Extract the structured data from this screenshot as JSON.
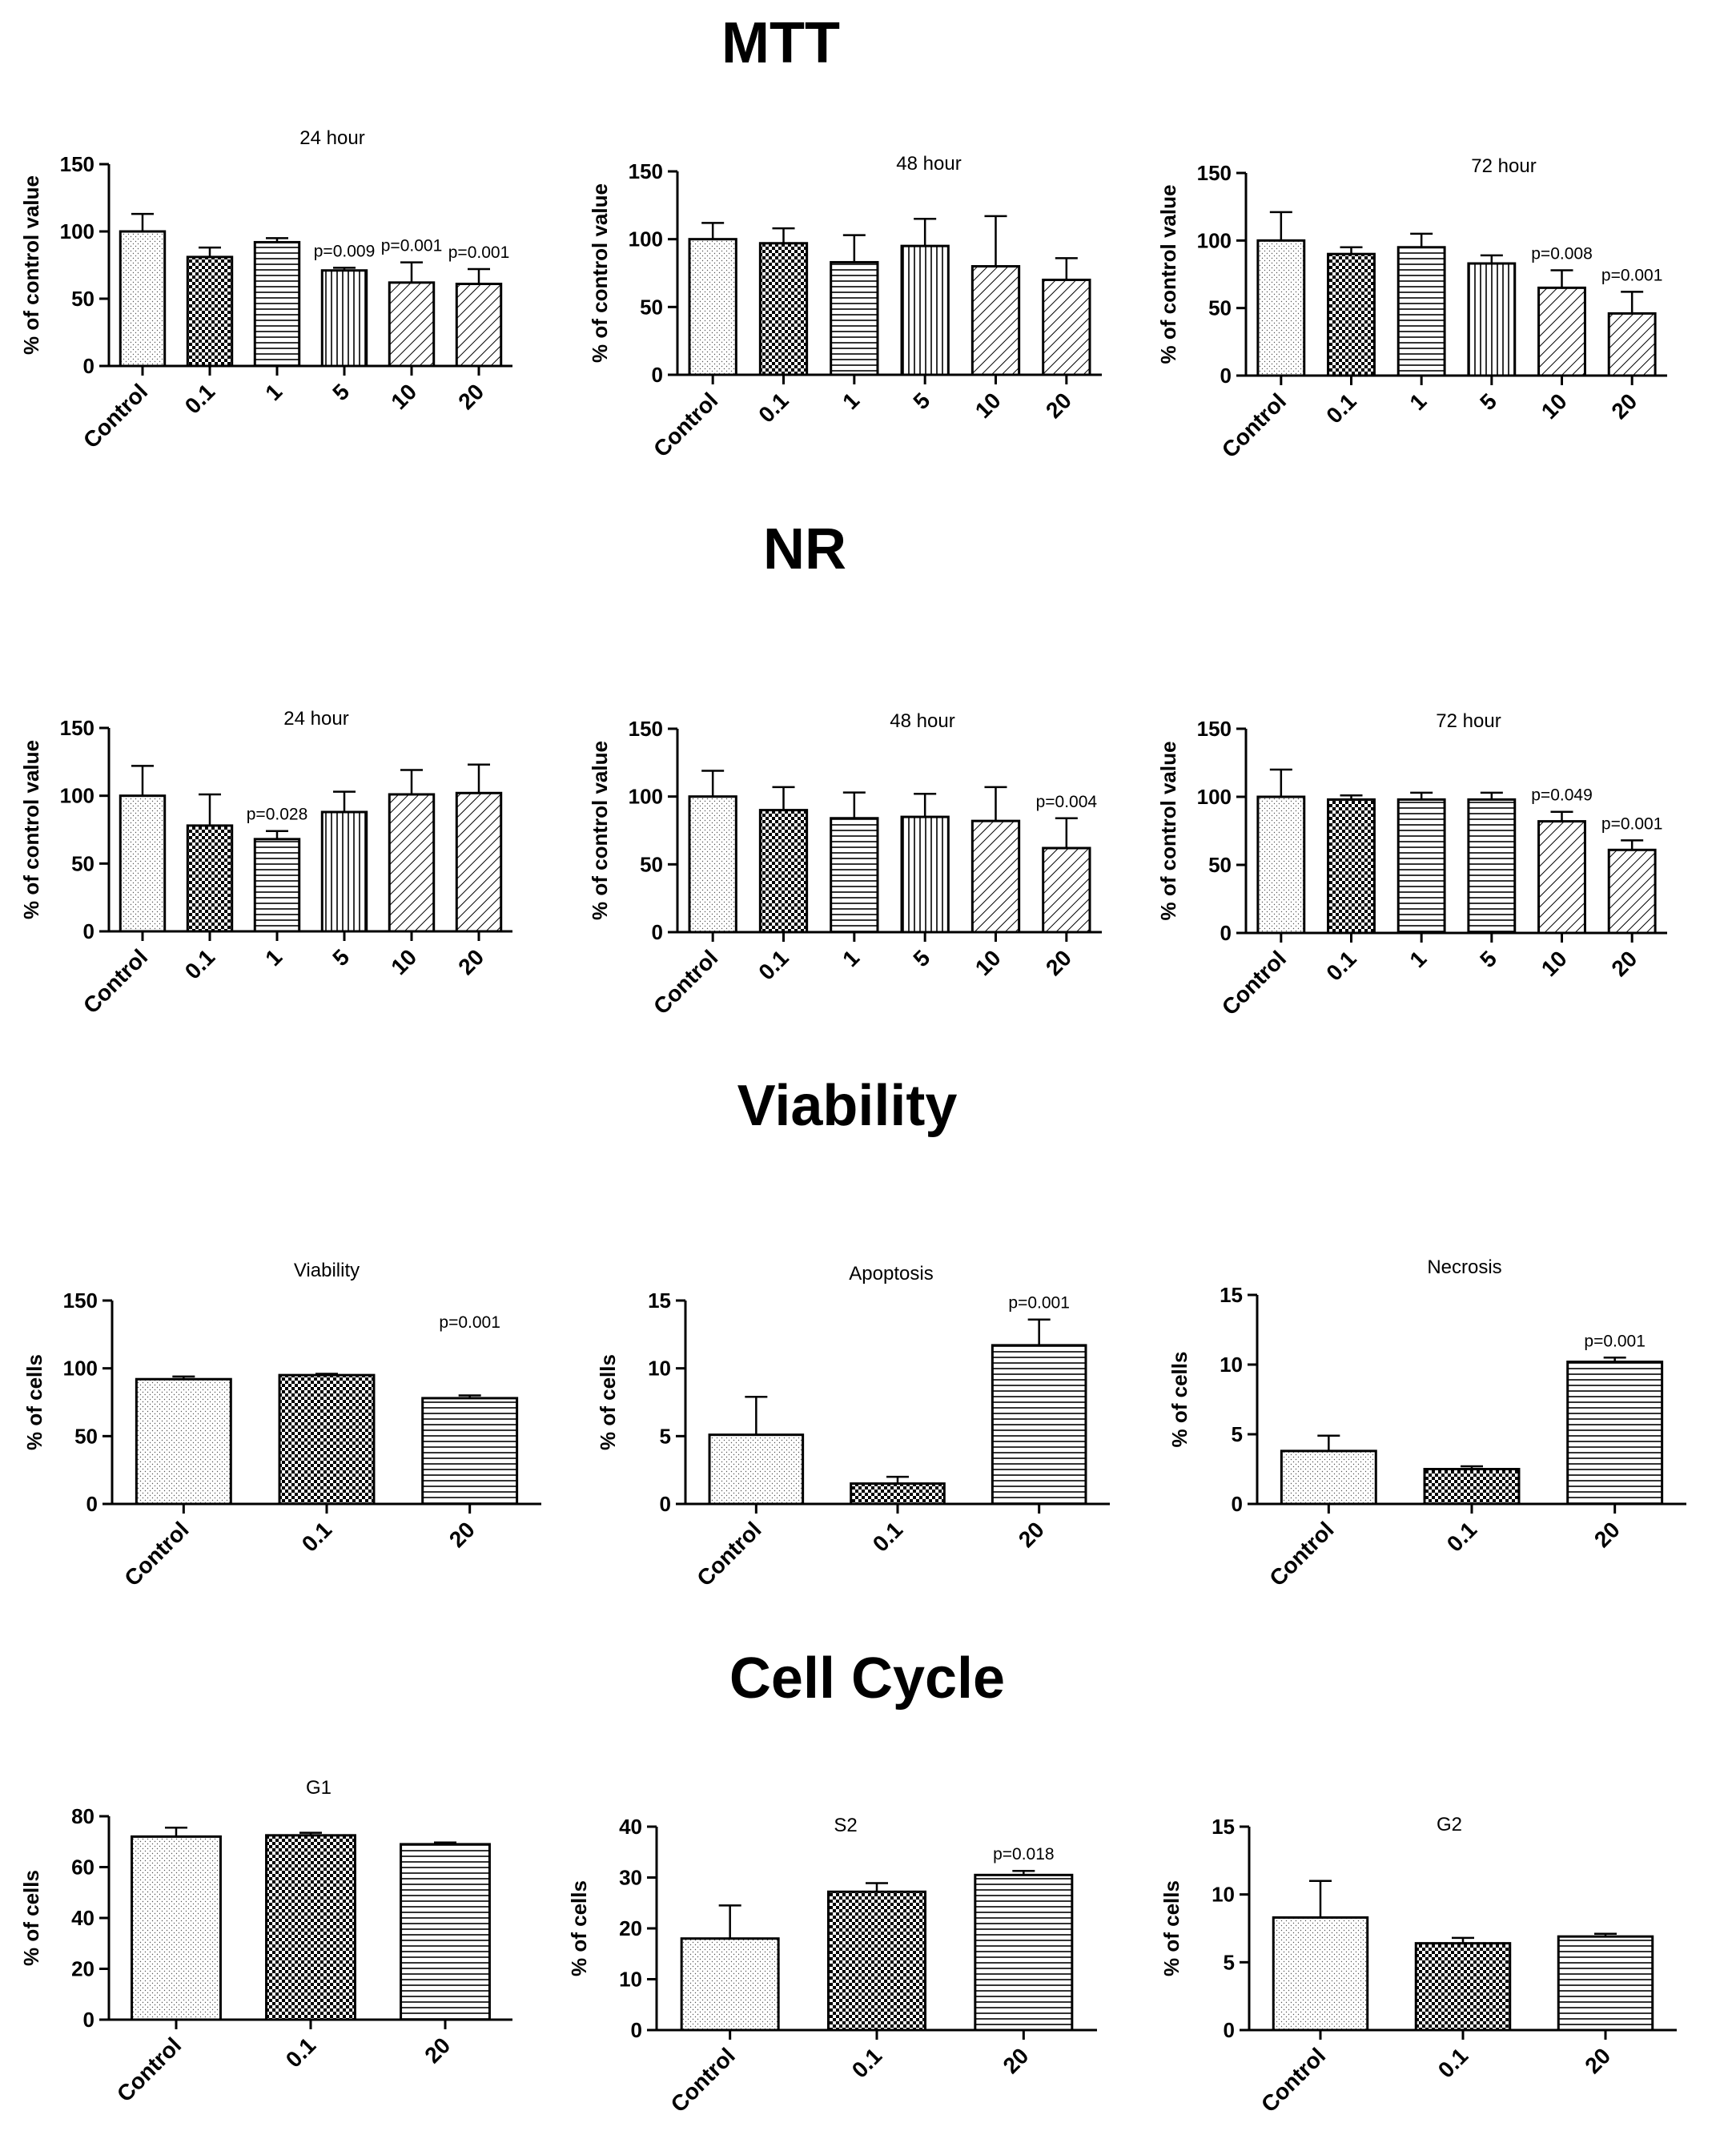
{
  "sections": [
    {
      "title": "MTT"
    },
    {
      "title": "NR"
    },
    {
      "title": "Viability"
    },
    {
      "title": "Cell Cycle"
    }
  ],
  "chart_data": [
    {
      "type": "bar",
      "section": "MTT",
      "title": "24 hour",
      "ylabel": "% of control value",
      "ylim": [
        0,
        150
      ],
      "yticks": [
        0,
        50,
        100,
        150
      ],
      "categories": [
        "Control",
        "0.1",
        "1",
        "5",
        "10",
        "20"
      ],
      "values": [
        100,
        81,
        92,
        71,
        62,
        61
      ],
      "errors": [
        13,
        7,
        3,
        2,
        15,
        11
      ],
      "patterns": [
        "dots",
        "check",
        "hlines",
        "vlines",
        "diag",
        "diag"
      ],
      "annotations": [
        "",
        "",
        "",
        "p=0.009",
        "p=0.001",
        "p=0.001"
      ]
    },
    {
      "type": "bar",
      "section": "MTT",
      "title": "48 hour",
      "ylabel": "% of control value",
      "ylim": [
        0,
        150
      ],
      "yticks": [
        0,
        50,
        100,
        150
      ],
      "categories": [
        "Control",
        "0.1",
        "1",
        "5",
        "10",
        "20"
      ],
      "values": [
        100,
        97,
        83,
        95,
        80,
        70
      ],
      "errors": [
        12,
        11,
        20,
        20,
        37,
        16
      ],
      "patterns": [
        "dots",
        "check",
        "hlines",
        "vlines",
        "diag",
        "diag"
      ],
      "annotations": [
        "",
        "",
        "",
        "",
        "",
        ""
      ]
    },
    {
      "type": "bar",
      "section": "MTT",
      "title": "72 hour",
      "ylabel": "% of control value",
      "ylim": [
        0,
        150
      ],
      "yticks": [
        0,
        50,
        100,
        150
      ],
      "categories": [
        "Control",
        "0.1",
        "1",
        "5",
        "10",
        "20"
      ],
      "values": [
        100,
        90,
        95,
        83,
        65,
        46
      ],
      "errors": [
        21,
        5,
        10,
        6,
        13,
        16
      ],
      "patterns": [
        "dots",
        "check",
        "hlines",
        "vlines",
        "diag",
        "diag"
      ],
      "annotations": [
        "",
        "",
        "",
        "",
        "p=0.008",
        "p=0.001"
      ]
    },
    {
      "type": "bar",
      "section": "NR",
      "title": "24 hour",
      "ylabel": "% of control value",
      "ylim": [
        0,
        150
      ],
      "yticks": [
        0,
        50,
        100,
        150
      ],
      "categories": [
        "Control",
        "0.1",
        "1",
        "5",
        "10",
        "20"
      ],
      "values": [
        100,
        78,
        68,
        88,
        101,
        102
      ],
      "errors": [
        22,
        23,
        6,
        15,
        18,
        21
      ],
      "patterns": [
        "dots",
        "check",
        "hlines",
        "vlines",
        "diag",
        "diag"
      ],
      "annotations": [
        "",
        "",
        "p=0.028",
        "",
        "",
        ""
      ]
    },
    {
      "type": "bar",
      "section": "NR",
      "title": "48 hour",
      "ylabel": "% of control value",
      "ylim": [
        0,
        150
      ],
      "yticks": [
        0,
        50,
        100,
        150
      ],
      "categories": [
        "Control",
        "0.1",
        "1",
        "5",
        "10",
        "20"
      ],
      "values": [
        100,
        90,
        84,
        85,
        82,
        62
      ],
      "errors": [
        19,
        17,
        19,
        17,
        25,
        22
      ],
      "patterns": [
        "dots",
        "check",
        "hlines",
        "vlines",
        "diag",
        "diag"
      ],
      "annotations": [
        "",
        "",
        "",
        "",
        "",
        "p=0.004"
      ]
    },
    {
      "type": "bar",
      "section": "NR",
      "title": "72 hour",
      "ylabel": "% of control value",
      "ylim": [
        0,
        150
      ],
      "yticks": [
        0,
        50,
        100,
        150
      ],
      "categories": [
        "Control",
        "0.1",
        "1",
        "5",
        "10",
        "20"
      ],
      "values": [
        100,
        98,
        98,
        98,
        82,
        61
      ],
      "errors": [
        20,
        3,
        5,
        5,
        7,
        7
      ],
      "patterns": [
        "dots",
        "check",
        "hlines",
        "hlines",
        "diag",
        "diag"
      ],
      "annotations": [
        "",
        "",
        "",
        "",
        "p=0.049",
        "p=0.001"
      ]
    },
    {
      "type": "bar",
      "section": "Viability",
      "title": "Viability",
      "ylabel": "% of cells",
      "ylim": [
        0,
        150
      ],
      "yticks": [
        0,
        50,
        100,
        150
      ],
      "categories": [
        "Control",
        "0.1",
        "20"
      ],
      "values": [
        92,
        95,
        78
      ],
      "errors": [
        2,
        1,
        2
      ],
      "patterns": [
        "dots",
        "check",
        "hlines"
      ],
      "annotations": [
        "",
        "",
        "p=0.001"
      ]
    },
    {
      "type": "bar",
      "section": "Viability",
      "title": "Apoptosis",
      "ylabel": "% of cells",
      "ylim": [
        0,
        15
      ],
      "yticks": [
        0,
        5,
        10,
        15
      ],
      "categories": [
        "Control",
        "0.1",
        "20"
      ],
      "values": [
        5.1,
        1.5,
        11.7
      ],
      "errors": [
        2.8,
        0.5,
        1.9
      ],
      "patterns": [
        "dots",
        "check",
        "hlines"
      ],
      "annotations": [
        "",
        "",
        "p=0.001"
      ]
    },
    {
      "type": "bar",
      "section": "Viability",
      "title": "Necrosis",
      "ylabel": "% of cells",
      "ylim": [
        0,
        15
      ],
      "yticks": [
        0,
        5,
        10,
        15
      ],
      "categories": [
        "Control",
        "0.1",
        "20"
      ],
      "values": [
        3.8,
        2.5,
        10.2
      ],
      "errors": [
        1.1,
        0.2,
        0.3
      ],
      "patterns": [
        "dots",
        "check",
        "hlines"
      ],
      "annotations": [
        "",
        "",
        "p=0.001"
      ]
    },
    {
      "type": "bar",
      "section": "Cell Cycle",
      "title": "G1",
      "ylabel": "% of cells",
      "ylim": [
        0,
        80
      ],
      "yticks": [
        0,
        20,
        40,
        60,
        80
      ],
      "categories": [
        "Control",
        "0.1",
        "20"
      ],
      "values": [
        72,
        72.5,
        69
      ],
      "errors": [
        3.5,
        1,
        0.7
      ],
      "patterns": [
        "dots",
        "check",
        "hlines"
      ],
      "annotations": [
        "",
        "",
        ""
      ]
    },
    {
      "type": "bar",
      "section": "Cell Cycle",
      "title": "S2",
      "ylabel": "% of cells",
      "ylim": [
        0,
        40
      ],
      "yticks": [
        0,
        10,
        20,
        30,
        40
      ],
      "categories": [
        "Control",
        "0.1",
        "20"
      ],
      "values": [
        18,
        27.2,
        30.5
      ],
      "errors": [
        6.5,
        1.7,
        0.8
      ],
      "patterns": [
        "dots",
        "check",
        "hlines"
      ],
      "annotations": [
        "",
        "",
        "p=0.018"
      ]
    },
    {
      "type": "bar",
      "section": "Cell Cycle",
      "title": "G2",
      "ylabel": "% of cells",
      "ylim": [
        0,
        15
      ],
      "yticks": [
        0,
        5,
        10,
        15
      ],
      "categories": [
        "Control",
        "0.1",
        "20"
      ],
      "values": [
        8.3,
        6.4,
        6.9
      ],
      "errors": [
        2.7,
        0.4,
        0.2
      ],
      "patterns": [
        "dots",
        "check",
        "hlines"
      ],
      "annotations": [
        "",
        "",
        ""
      ]
    }
  ]
}
